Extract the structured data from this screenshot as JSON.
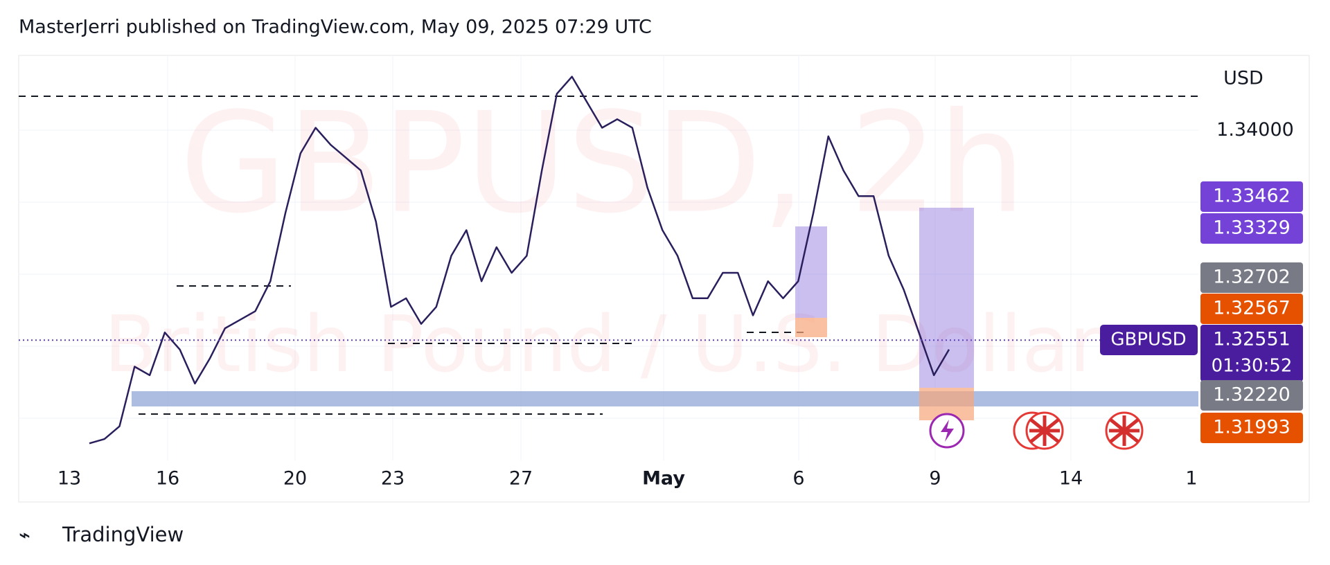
{
  "header": "MasterJerri published on TradingView.com, May 09, 2025 07:29 UTC",
  "footer": "TradingView",
  "chart_data": {
    "type": "line",
    "watermark": "GBPUSD, 2h",
    "watermark_subtitle": "British Pound / U.S. Dollar",
    "currency": "USD",
    "symbol": "GBPUSD",
    "countdown": "01:30:52",
    "x_labels": [
      "13",
      "16",
      "20",
      "23",
      "27",
      "May",
      "6",
      "9",
      "14",
      "1"
    ],
    "values": [
      1.31838,
      1.31868,
      1.31956,
      1.32368,
      1.32309,
      1.32604,
      1.32486,
      1.32251,
      1.32427,
      1.32633,
      1.32692,
      1.32751,
      1.32958,
      1.33429,
      1.33841,
      1.34018,
      1.339,
      1.33812,
      1.33723,
      1.3337,
      1.32781,
      1.3284,
      1.32663,
      1.32781,
      1.33134,
      1.33311,
      1.32958,
      1.33193,
      1.33016,
      1.33134,
      1.33723,
      1.34253,
      1.34371,
      1.34194,
      1.34018,
      1.34077,
      1.34018,
      1.33605,
      1.33311,
      1.33134,
      1.3284,
      1.3284,
      1.33016,
      1.33016,
      1.32722,
      1.32958,
      1.3284,
      1.32958,
      1.33429,
      1.33959,
      1.33723,
      1.33546,
      1.33546,
      1.33134,
      1.32899,
      1.32604,
      1.32309,
      1.32486
    ],
    "color": "#2a1f5c",
    "ylim": [
      1.3172,
      1.34518
    ],
    "yticks": [
      {
        "value": 1.34,
        "label": "1.34000"
      }
    ],
    "price_tags": [
      {
        "value": 1.33462,
        "label": "1.33462",
        "color": "#7442d6"
      },
      {
        "value": 1.33329,
        "label": "1.33329",
        "color": "#7442d6"
      },
      {
        "value": 1.32702,
        "label": "1.32702",
        "color": "#787b86"
      },
      {
        "value": 1.32567,
        "label": "1.32567",
        "color": "#e65100"
      },
      {
        "value": 1.32551,
        "label": "1.32551",
        "color": "#4a1c9e"
      },
      {
        "value": 1.3222,
        "label": "1.32220",
        "color": "#787b86"
      },
      {
        "value": 1.31993,
        "label": "1.31993",
        "color": "#e65100"
      }
    ]
  }
}
